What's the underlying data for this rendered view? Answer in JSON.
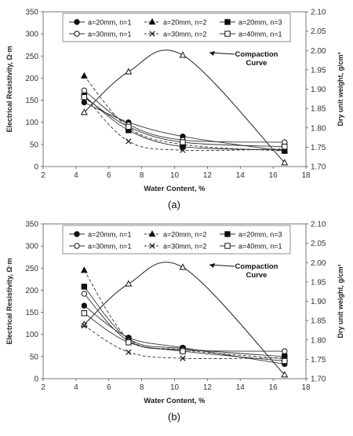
{
  "chart_data": [
    {
      "type": "line",
      "panel_label": "(a)",
      "xlabel": "Water Content, %",
      "ylabel": "Electrical Resistivity, Ω·m",
      "y2label": "Dry unit weight, g/cm³",
      "xlim": [
        2,
        18
      ],
      "ylim": [
        0,
        350
      ],
      "y2lim": [
        1.7,
        2.1
      ],
      "xticks": [
        "2",
        "4",
        "6",
        "8",
        "10",
        "12",
        "14",
        "16",
        "18"
      ],
      "yticks": [
        "0",
        "50",
        "100",
        "150",
        "200",
        "250",
        "300",
        "350"
      ],
      "y2ticks": [
        "1.70",
        "1.75",
        "1.80",
        "1.85",
        "1.90",
        "1.95",
        "2.00",
        "2.05",
        "2.10"
      ],
      "grid": false,
      "legend_position": "top",
      "annotation": {
        "line1": "Compaction",
        "line2": "Curve"
      },
      "series": [
        {
          "name": "a=20mm, n=1",
          "marker": "circle-filled",
          "dash": "solid",
          "x": [
            4.5,
            7.2,
            10.5,
            16.7
          ],
          "y": [
            145,
            100,
            68,
            35
          ]
        },
        {
          "name": "a=20mm, n=2",
          "marker": "triangle-filled",
          "dash": "dashed",
          "x": [
            4.5,
            7.2,
            10.5,
            16.7
          ],
          "y": [
            205,
            88,
            50,
            35
          ]
        },
        {
          "name": "a=20mm, n=3",
          "marker": "square-filled",
          "dash": "solid",
          "x": [
            4.5,
            7.2,
            10.5,
            16.7
          ],
          "y": [
            160,
            82,
            45,
            38
          ]
        },
        {
          "name": "a=30mm, n=1",
          "marker": "circle-open",
          "dash": "solid",
          "x": [
            4.5,
            7.2,
            10.5,
            16.7
          ],
          "y": [
            172,
            95,
            60,
            55
          ]
        },
        {
          "name": "a=30mm, n=2",
          "marker": "x",
          "dash": "dashed",
          "x": [
            4.5,
            7.2,
            10.5,
            16.7
          ],
          "y": [
            160,
            57,
            37,
            40
          ]
        },
        {
          "name": "a=40mm, n=1",
          "marker": "square-open",
          "dash": "solid",
          "x": [
            4.5,
            7.2,
            10.5,
            16.7
          ],
          "y": [
            157,
            90,
            55,
            45
          ]
        }
      ],
      "compaction": {
        "x": [
          4.5,
          7.2,
          10.5,
          16.7
        ],
        "y2": [
          1.84,
          1.945,
          1.988,
          1.71
        ]
      }
    },
    {
      "type": "line",
      "panel_label": "(b)",
      "xlabel": "Water Content, %",
      "ylabel": "Electrical Resistivity, Ω·m",
      "y2label": "Dry unit weight, g/cm³",
      "xlim": [
        2,
        18
      ],
      "ylim": [
        0,
        350
      ],
      "y2lim": [
        1.7,
        2.1
      ],
      "xticks": [
        "2",
        "4",
        "6",
        "8",
        "10",
        "12",
        "14",
        "16",
        "18"
      ],
      "yticks": [
        "0",
        "50",
        "100",
        "150",
        "200",
        "250",
        "300",
        "350"
      ],
      "y2ticks": [
        "1.70",
        "1.75",
        "1.80",
        "1.85",
        "1.90",
        "1.95",
        "2.00",
        "2.05",
        "2.10"
      ],
      "grid": false,
      "legend_position": "top",
      "annotation": {
        "line1": "Compaction",
        "line2": "Curve"
      },
      "series": [
        {
          "name": "a=20mm, n=1",
          "marker": "circle-filled",
          "dash": "solid",
          "x": [
            4.5,
            7.2,
            10.5,
            16.7
          ],
          "y": [
            165,
            93,
            70,
            33
          ]
        },
        {
          "name": "a=20mm, n=2",
          "marker": "triangle-filled",
          "dash": "dashed",
          "x": [
            4.5,
            7.2,
            10.5,
            16.7
          ],
          "y": [
            245,
            90,
            65,
            45
          ]
        },
        {
          "name": "a=20mm, n=3",
          "marker": "square-filled",
          "dash": "solid",
          "x": [
            4.5,
            7.2,
            10.5,
            16.7
          ],
          "y": [
            208,
            90,
            68,
            50
          ]
        },
        {
          "name": "a=30mm, n=1",
          "marker": "circle-open",
          "dash": "solid",
          "x": [
            4.5,
            7.2,
            10.5,
            16.7
          ],
          "y": [
            192,
            85,
            65,
            62
          ]
        },
        {
          "name": "a=30mm, n=2",
          "marker": "x",
          "dash": "dashed",
          "x": [
            4.5,
            7.2,
            10.5,
            16.7
          ],
          "y": [
            120,
            60,
            46,
            47
          ]
        },
        {
          "name": "a=40mm, n=1",
          "marker": "square-open",
          "dash": "solid",
          "x": [
            4.5,
            7.2,
            10.5,
            16.7
          ],
          "y": [
            148,
            82,
            62,
            40
          ]
        }
      ],
      "compaction": {
        "x": [
          4.5,
          7.2,
          10.5,
          16.7
        ],
        "y2": [
          1.84,
          1.945,
          1.988,
          1.71
        ]
      }
    }
  ]
}
